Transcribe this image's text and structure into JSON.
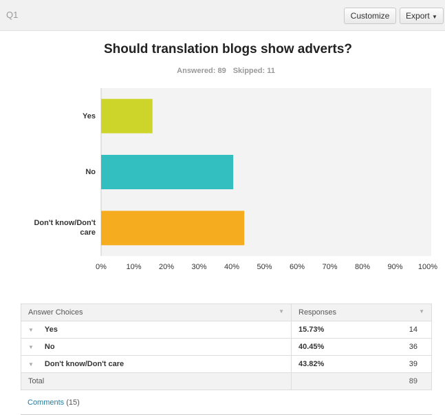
{
  "header": {
    "question_id": "Q1",
    "buttons": [
      "Customize",
      "Export"
    ]
  },
  "chart_data": {
    "type": "bar",
    "orientation": "horizontal",
    "title": "Should translation blogs show adverts?",
    "summary": [
      "Answered: 89",
      "Skipped: 11"
    ],
    "categories": [
      "Yes",
      "No",
      "Don't know/Don't care"
    ],
    "values": [
      15.73,
      40.45,
      43.82
    ],
    "colors": [
      "#cdd52a",
      "#33bec0",
      "#f6ac1f"
    ],
    "xlim": [
      0,
      100
    ],
    "xticks": [
      {
        "value": 0,
        "label": "0%"
      },
      {
        "value": 10,
        "label": "10%"
      },
      {
        "value": 20,
        "label": "20%"
      },
      {
        "value": 30,
        "label": "30%"
      },
      {
        "value": 40,
        "label": "40%"
      },
      {
        "value": 50,
        "label": "50%"
      },
      {
        "value": 60,
        "label": "60%"
      },
      {
        "value": 70,
        "label": "70%"
      },
      {
        "value": 80,
        "label": "80%"
      },
      {
        "value": 90,
        "label": "90%"
      },
      {
        "value": 100,
        "label": "100%"
      }
    ],
    "grid": false
  },
  "table": {
    "columns": [
      "Answer Choices",
      "Responses"
    ],
    "rows": [
      [
        "Yes",
        "15.73%",
        "14"
      ],
      [
        "No",
        "40.45%",
        "36"
      ],
      [
        "Don't know/Don't care",
        "43.82%",
        "39"
      ]
    ],
    "total": [
      "Total",
      "89"
    ]
  },
  "comments": {
    "label": "Comments",
    "count": "(15)"
  }
}
